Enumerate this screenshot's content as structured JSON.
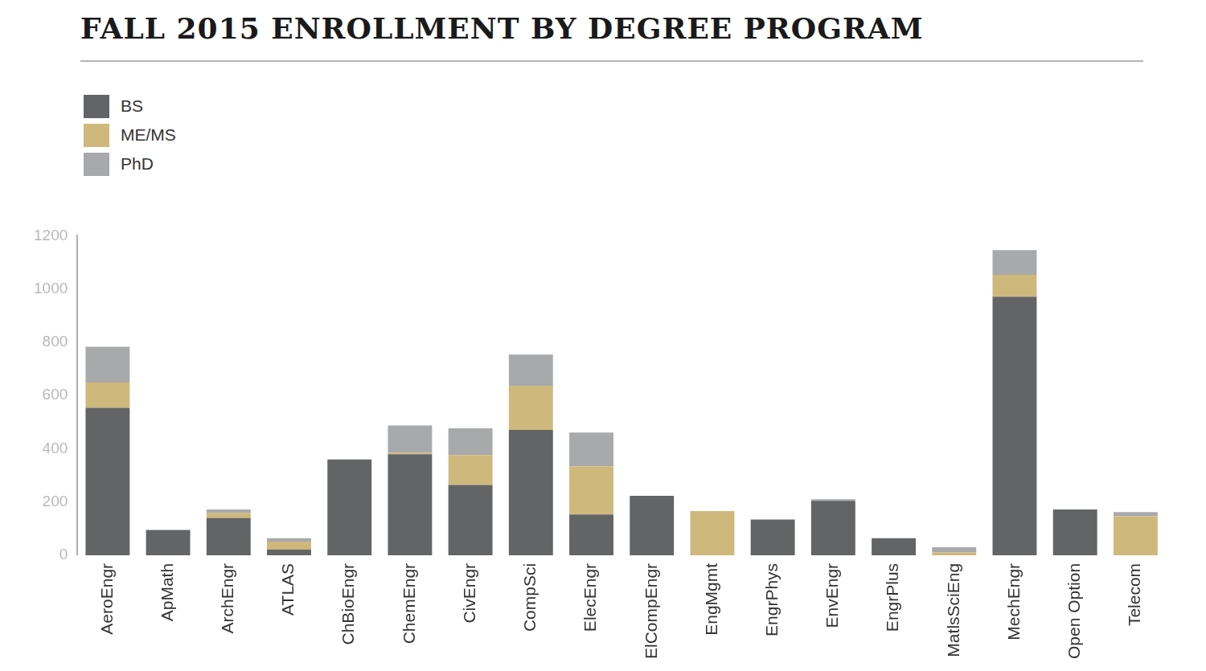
{
  "chart_data": {
    "type": "bar",
    "title": "FALL 2015 ENROLLMENT BY DEGREE PROGRAM",
    "categories": [
      "AeroEngr",
      "ApMath",
      "ArchEngr",
      "ATLAS",
      "ChBioEngr",
      "ChemEngr",
      "CivEngr",
      "CompSci",
      "ElecEngr",
      "ElCompEngr",
      "EngMgmt",
      "EngrPhys",
      "EnvEngr",
      "EngrPlus",
      "MatlsSciEng",
      "MechEngr",
      "Open Option",
      "Telecom"
    ],
    "series": [
      {
        "name": "BS",
        "color": "#636466",
        "values": [
          554,
          95,
          140,
          22,
          360,
          379,
          264,
          471,
          153,
          223,
          0,
          134,
          204,
          64,
          0,
          971,
          172,
          0
        ]
      },
      {
        "name": "ME/MS",
        "color": "#cfb87c",
        "values": [
          95,
          0,
          19,
          29,
          0,
          6,
          112,
          166,
          181,
          0,
          166,
          0,
          0,
          0,
          10,
          82,
          0,
          146
        ]
      },
      {
        "name": "PhD",
        "color": "#a8a9ab",
        "values": [
          134,
          0,
          13,
          13,
          0,
          102,
          101,
          117,
          127,
          0,
          0,
          0,
          6,
          0,
          20,
          93,
          0,
          16
        ]
      }
    ],
    "ylim": [
      0,
      1200
    ],
    "yticks": [
      0,
      200,
      400,
      600,
      800,
      1000,
      1200
    ],
    "stacked": true,
    "grid": false,
    "legend": "top-left"
  }
}
